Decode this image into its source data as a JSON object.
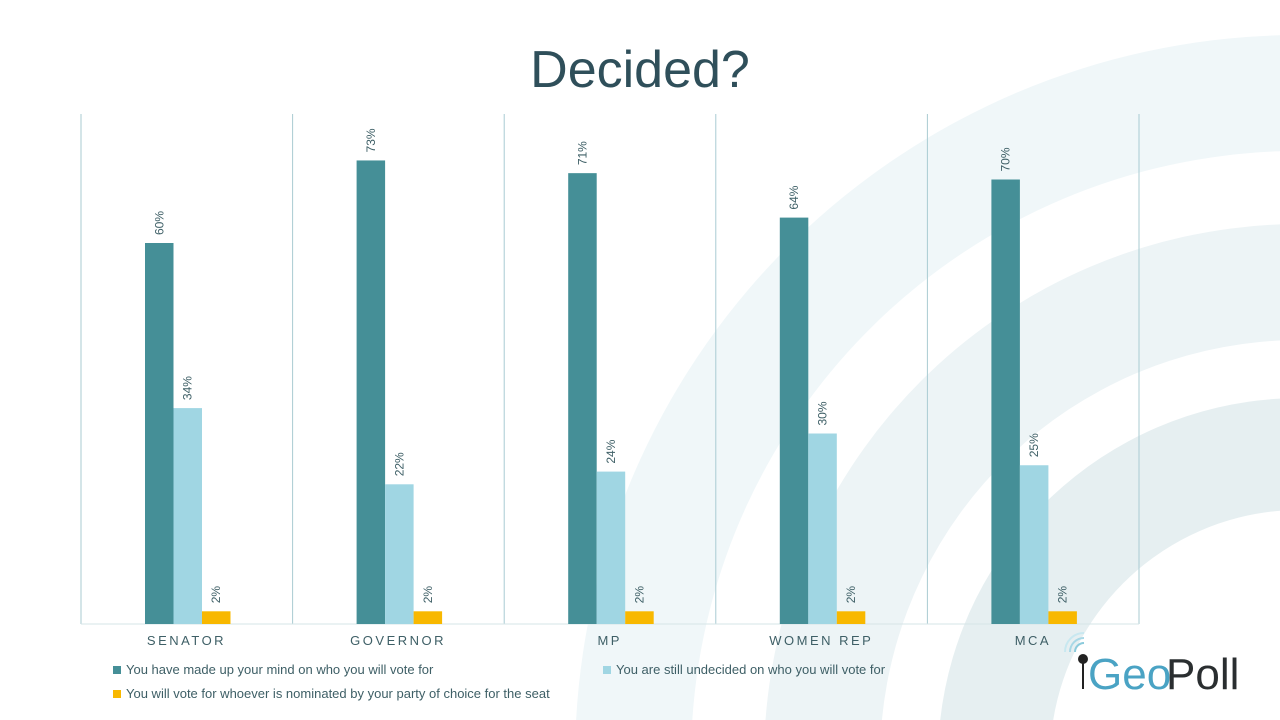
{
  "chart_data": {
    "type": "bar",
    "title": "Decided?",
    "categories": [
      "SENATOR",
      "GOVERNOR",
      "MP",
      "WOMEN REP",
      "MCA"
    ],
    "series": [
      {
        "name": "You have made up your mind on who you will vote for",
        "color": "#458f97",
        "values": [
          60,
          73,
          71,
          64,
          70
        ],
        "labels": [
          "60%",
          "73%",
          "71%",
          "64%",
          "70%"
        ]
      },
      {
        "name": "You are still undecided on who you will vote for",
        "color": "#a0d6e3",
        "values": [
          34,
          22,
          24,
          30,
          25
        ],
        "labels": [
          "34%",
          "22%",
          "24%",
          "30%",
          "25%"
        ]
      },
      {
        "name": "You will vote for whoever is nominated by your party of choice for the seat",
        "color": "#f8b800",
        "values": [
          2,
          2,
          2,
          2,
          2
        ],
        "labels": [
          "2%",
          "2%",
          "2%",
          "2%",
          "2%"
        ]
      }
    ],
    "ylim": [
      0,
      100
    ],
    "grid": "vertical category separators",
    "legend": "bottom"
  },
  "logo": {
    "text_geo": "Geo",
    "text_poll": "Poll"
  }
}
